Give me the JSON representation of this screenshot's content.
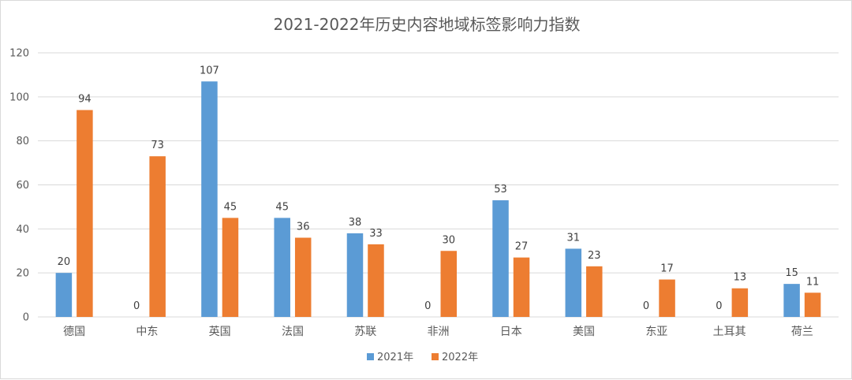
{
  "chart_data": {
    "type": "bar",
    "title": "2021-2022年历史内容地域标签影响力指数",
    "xlabel": "",
    "ylabel": "",
    "categories": [
      "德国",
      "中东",
      "英国",
      "法国",
      "苏联",
      "非洲",
      "日本",
      "美国",
      "东亚",
      "土耳其",
      "荷兰"
    ],
    "series": [
      {
        "name": "2021年",
        "color": "#5b9bd5",
        "values": [
          20,
          0,
          107,
          45,
          38,
          0,
          53,
          31,
          0,
          0,
          15
        ]
      },
      {
        "name": "2022年",
        "color": "#ed7d31",
        "values": [
          94,
          73,
          45,
          36,
          33,
          30,
          27,
          23,
          17,
          13,
          11
        ]
      }
    ],
    "ylim": [
      0,
      120
    ],
    "yticks": [
      0,
      20,
      40,
      60,
      80,
      100,
      120
    ],
    "grid": true,
    "legend_position": "bottom",
    "data_labels": true
  }
}
